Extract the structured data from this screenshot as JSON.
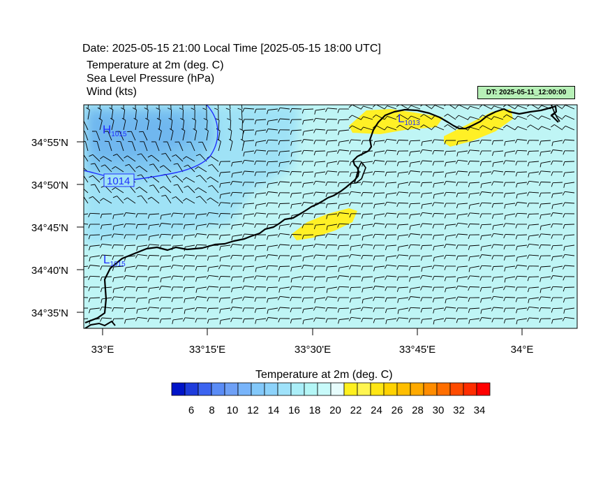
{
  "header": {
    "line1": "Date: 2025-05-15  21:00 Local Time [2025-05-15  18:00 UTC]",
    "line2": "Temperature at 2m   (deg. C)",
    "line3": "Sea Level Pressure   (hPa)",
    "line4": "Wind   (kts)",
    "dt_badge": "DT: 2025-05-11_12:00:00"
  },
  "map": {
    "lon_ticks": [
      "33°E",
      "33°15'E",
      "33°30'E",
      "33°45'E",
      "34°E"
    ],
    "lat_ticks": [
      "34°55'N",
      "34°50'N",
      "34°45'N",
      "34°40'N",
      "34°35'N"
    ],
    "pressure_labels": [
      {
        "kind": "H",
        "value": "1015"
      },
      {
        "kind": "L",
        "value": "1013"
      },
      {
        "kind": "L",
        "value": "1015"
      }
    ],
    "isobar_label": "1014",
    "colors": {
      "background_field": "#bff5f5",
      "cool_field": "#9fe2f6",
      "cold_field": "#7fc8f2",
      "warm_field": "#fff026",
      "coastline": "#000000",
      "isobar": "#1f2fff"
    }
  },
  "colorbar": {
    "title": "Temperature at 2m  (deg. C)",
    "labels": [
      "6",
      "8",
      "10",
      "12",
      "14",
      "16",
      "18",
      "20",
      "22",
      "24",
      "26",
      "28",
      "30",
      "32",
      "34"
    ],
    "colors": [
      "#0014c8",
      "#1e3cdc",
      "#3c64f0",
      "#5a8cf6",
      "#6ea0f6",
      "#78b4fa",
      "#82c8fa",
      "#8cd2fa",
      "#9fe2fa",
      "#aaeef8",
      "#b4f6f6",
      "#c8fafa",
      "#e6fcfc",
      "#fff01e",
      "#fff550",
      "#ffe614",
      "#ffd200",
      "#ffbe00",
      "#ffaa00",
      "#ff8c00",
      "#ff6e00",
      "#ff4b00",
      "#ff2d00",
      "#ff0000"
    ]
  }
}
